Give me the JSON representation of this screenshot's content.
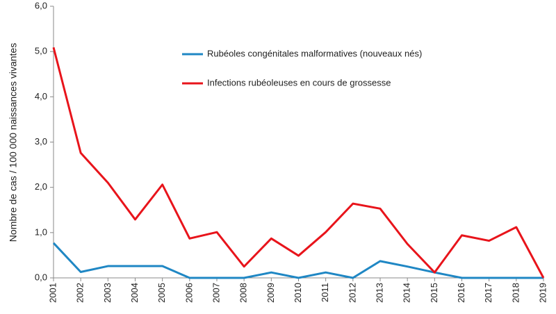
{
  "chart_data": {
    "type": "line",
    "y_label": "Nombre de cas / 100 000 naissances vivantes",
    "x": [
      2001,
      2002,
      2003,
      2004,
      2005,
      2006,
      2007,
      2008,
      2009,
      2010,
      2011,
      2012,
      2013,
      2014,
      2015,
      2016,
      2017,
      2018,
      2019
    ],
    "xlim": [
      2001,
      2019
    ],
    "ylim": [
      0,
      6
    ],
    "yticks": [
      {
        "value": 0,
        "label": "0,0"
      },
      {
        "value": 1,
        "label": "1,0"
      },
      {
        "value": 2,
        "label": "2,0"
      },
      {
        "value": 3,
        "label": "3,0"
      },
      {
        "value": 4,
        "label": "4,0"
      },
      {
        "value": 5,
        "label": "5,0"
      },
      {
        "value": 6,
        "label": "6,0"
      }
    ],
    "series": [
      {
        "name": "Rubéoles congénitales malformatives (nouveaux nés)",
        "color": "#1f87c4",
        "values": [
          0.77,
          0.13,
          0.26,
          0.26,
          0.26,
          0,
          0,
          0,
          0.12,
          0,
          0.12,
          0,
          0.37,
          0.25,
          0.12,
          0,
          0,
          0,
          0
        ]
      },
      {
        "name": "Infections rubéoleuses en cours de grossesse",
        "color": "#e8141b",
        "values": [
          5.09,
          2.76,
          2.1,
          1.29,
          2.06,
          0.87,
          1.01,
          0.25,
          0.87,
          0.49,
          1.01,
          1.64,
          1.53,
          0.75,
          0.12,
          0.94,
          0.82,
          1.12,
          0
        ]
      }
    ]
  }
}
